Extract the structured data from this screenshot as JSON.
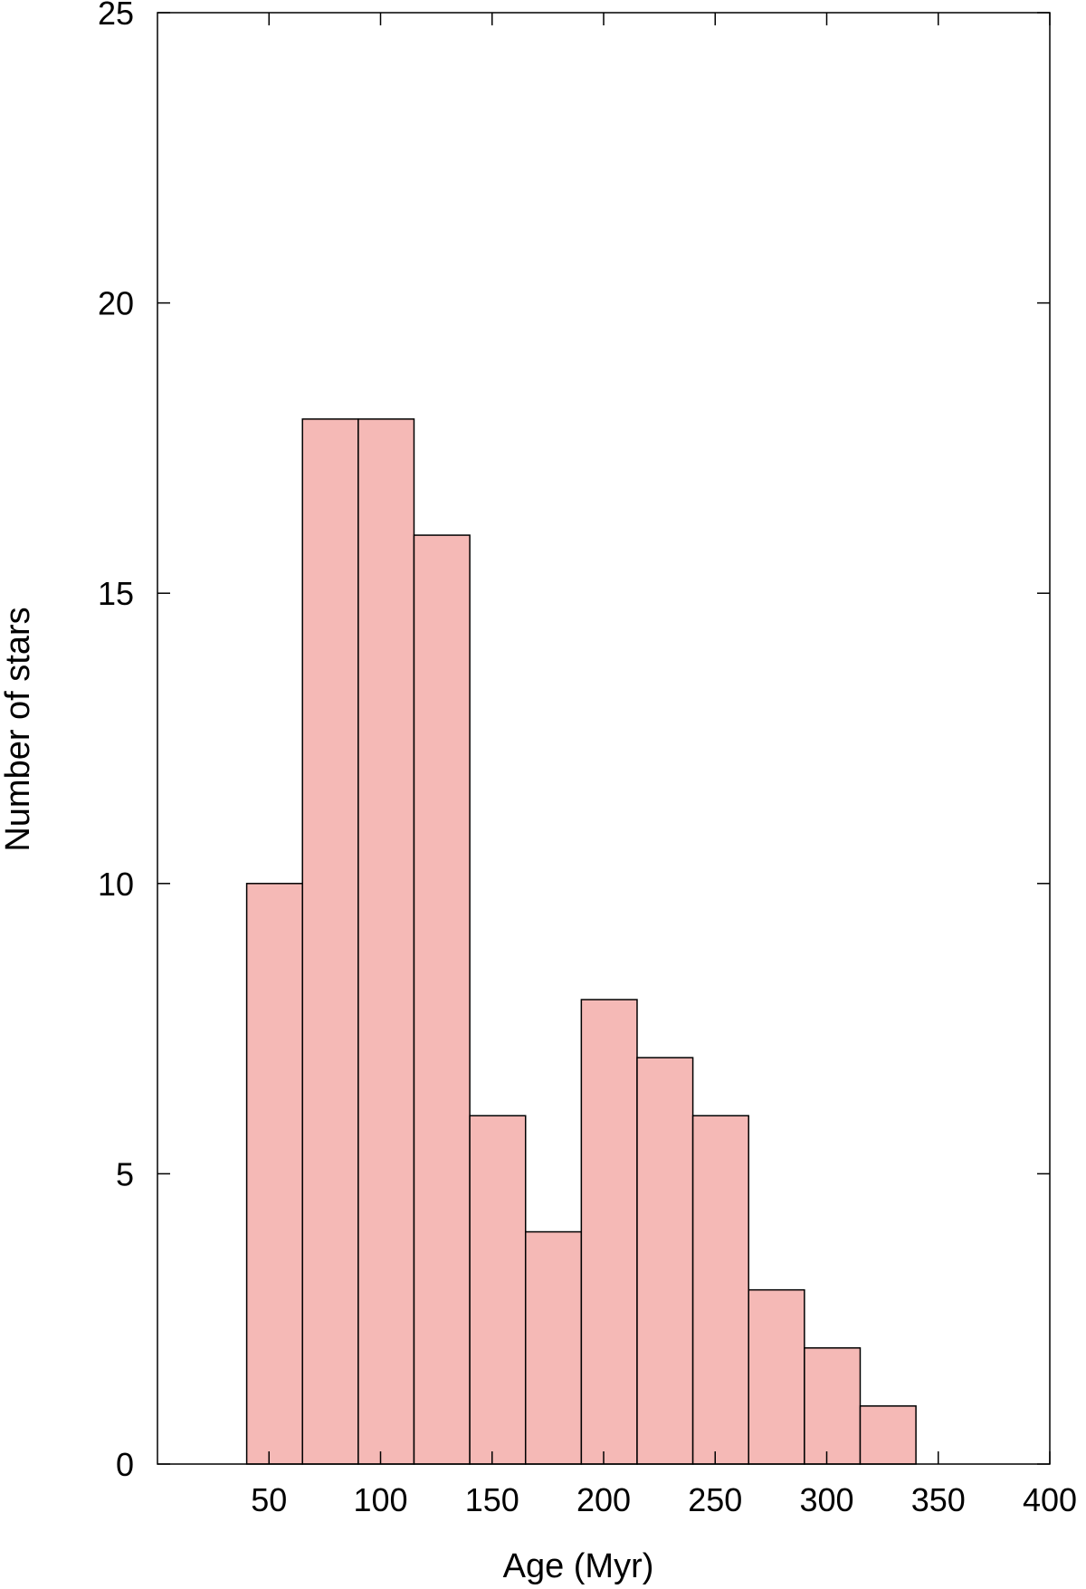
{
  "chart_data": {
    "type": "bar",
    "title": "",
    "xlabel": "Age (Myr)",
    "ylabel": "Number of stars",
    "xlim": [
      0,
      400
    ],
    "ylim": [
      0,
      25
    ],
    "xticks": [
      50,
      100,
      150,
      200,
      250,
      300,
      350,
      400
    ],
    "yticks": [
      0,
      5,
      10,
      15,
      20,
      25
    ],
    "bin_width": 25,
    "bins": [
      {
        "x0": 40,
        "x1": 65,
        "value": 10
      },
      {
        "x0": 65,
        "x1": 90,
        "value": 18
      },
      {
        "x0": 90,
        "x1": 115,
        "value": 18
      },
      {
        "x0": 115,
        "x1": 140,
        "value": 16
      },
      {
        "x0": 140,
        "x1": 165,
        "value": 6
      },
      {
        "x0": 165,
        "x1": 190,
        "value": 4
      },
      {
        "x0": 190,
        "x1": 215,
        "value": 8
      },
      {
        "x0": 215,
        "x1": 240,
        "value": 7
      },
      {
        "x0": 240,
        "x1": 265,
        "value": 6
      },
      {
        "x0": 265,
        "x1": 290,
        "value": 3
      },
      {
        "x0": 290,
        "x1": 315,
        "value": 2
      },
      {
        "x0": 315,
        "x1": 340,
        "value": 1
      }
    ],
    "bar_color": "#f5b9b6",
    "edge_color": "#000000",
    "grid": false,
    "legend": "none"
  }
}
